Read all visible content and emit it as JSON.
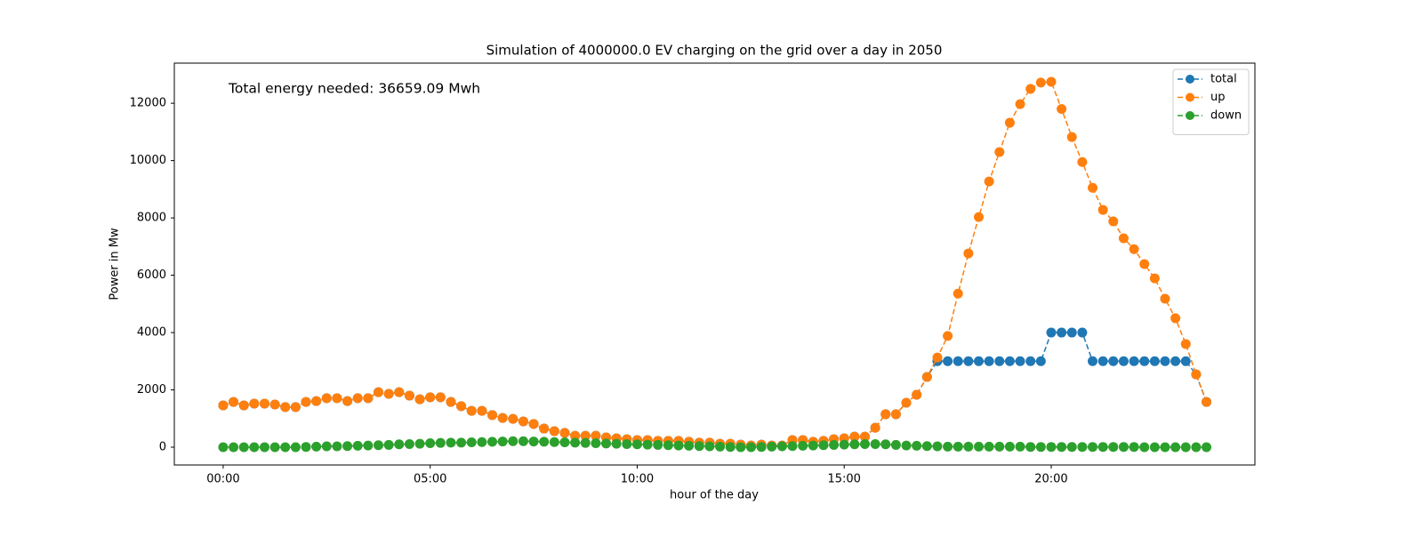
{
  "chart_data": {
    "type": "line",
    "title": "Simulation of 4000000.0 EV charging on the grid over a day in 2050",
    "x_label": "hour of the day",
    "y_label": "Power in Mw",
    "annotation": {
      "text": "Total energy needed: 36659.09 Mwh",
      "color": "#ff0000"
    },
    "x": [
      0,
      0.25,
      0.5,
      0.75,
      1,
      1.25,
      1.5,
      1.75,
      2,
      2.25,
      2.5,
      2.75,
      3,
      3.25,
      3.5,
      3.75,
      4,
      4.25,
      4.5,
      4.75,
      5,
      5.25,
      5.5,
      5.75,
      6,
      6.25,
      6.5,
      6.75,
      7,
      7.25,
      7.5,
      7.75,
      8,
      8.25,
      8.5,
      8.75,
      9,
      9.25,
      9.5,
      9.75,
      10,
      10.25,
      10.5,
      10.75,
      11,
      11.25,
      11.5,
      11.75,
      12,
      12.25,
      12.5,
      12.75,
      13,
      13.25,
      13.5,
      13.75,
      14,
      14.25,
      14.5,
      14.75,
      15,
      15.25,
      15.5,
      15.75,
      16,
      16.25,
      16.5,
      16.75,
      17,
      17.25,
      17.5,
      17.75,
      18,
      18.25,
      18.5,
      18.75,
      19,
      19.25,
      19.5,
      19.75,
      20,
      20.25,
      20.5,
      20.75,
      21,
      21.25,
      21.5,
      21.75,
      22,
      22.25,
      22.5,
      22.75,
      23,
      23.25,
      23.5,
      23.75
    ],
    "series": [
      {
        "name": "total",
        "color": "#1f77b4",
        "values": [
          1460,
          1580,
          1460,
          1520,
          1520,
          1490,
          1400,
          1400,
          1580,
          1610,
          1710,
          1710,
          1610,
          1710,
          1710,
          1920,
          1860,
          1920,
          1800,
          1670,
          1740,
          1740,
          1580,
          1430,
          1270,
          1270,
          1120,
          1020,
          990,
          900,
          810,
          650,
          560,
          500,
          400,
          400,
          400,
          340,
          310,
          280,
          250,
          250,
          220,
          220,
          220,
          190,
          160,
          160,
          120,
          120,
          90,
          60,
          90,
          60,
          60,
          250,
          250,
          190,
          220,
          280,
          310,
          370,
          370,
          680,
          1150,
          1150,
          1550,
          1830,
          2450,
          3000,
          3000,
          3000,
          3000,
          3000,
          3000,
          3000,
          3000,
          3000,
          3000,
          3000,
          4000,
          4000,
          4000,
          4000,
          3000,
          3000,
          3000,
          3000,
          3000,
          3000,
          3000,
          3000,
          3000,
          3000,
          2540,
          1580
        ]
      },
      {
        "name": "up",
        "color": "#ff7f0e",
        "values": [
          1460,
          1580,
          1460,
          1520,
          1520,
          1490,
          1400,
          1400,
          1580,
          1610,
          1710,
          1710,
          1610,
          1710,
          1710,
          1920,
          1860,
          1920,
          1800,
          1670,
          1740,
          1740,
          1580,
          1430,
          1270,
          1270,
          1120,
          1020,
          990,
          900,
          810,
          650,
          560,
          500,
          400,
          400,
          400,
          340,
          310,
          280,
          250,
          250,
          220,
          220,
          220,
          190,
          160,
          160,
          120,
          120,
          90,
          60,
          90,
          60,
          60,
          250,
          250,
          190,
          220,
          280,
          310,
          370,
          370,
          680,
          1150,
          1150,
          1550,
          1830,
          2450,
          3130,
          3880,
          5360,
          6760,
          8030,
          9270,
          10300,
          11320,
          11970,
          12500,
          12720,
          12750,
          11800,
          10820,
          9950,
          9050,
          8280,
          7880,
          7290,
          6910,
          6390,
          5890,
          5180,
          4500,
          3600,
          2540,
          1580
        ]
      },
      {
        "name": "down",
        "color": "#2ca02c",
        "values": [
          0,
          0,
          0,
          0,
          0,
          0,
          0,
          0,
          10,
          20,
          30,
          30,
          40,
          50,
          60,
          70,
          80,
          100,
          110,
          120,
          140,
          150,
          160,
          160,
          170,
          180,
          190,
          200,
          210,
          210,
          200,
          190,
          180,
          170,
          160,
          150,
          140,
          130,
          120,
          110,
          100,
          90,
          80,
          70,
          60,
          50,
          40,
          30,
          20,
          10,
          0,
          0,
          10,
          20,
          30,
          40,
          50,
          60,
          70,
          80,
          90,
          100,
          110,
          110,
          100,
          80,
          60,
          50,
          40,
          30,
          20,
          20,
          20,
          20,
          20,
          20,
          20,
          20,
          10,
          10,
          10,
          10,
          10,
          10,
          10,
          10,
          10,
          10,
          10,
          0,
          0,
          0,
          0,
          0,
          0,
          0
        ]
      }
    ],
    "xlim": [
      -1.18,
      24.92
    ],
    "xticks": [
      {
        "value": 0,
        "label": "00:00"
      },
      {
        "value": 5,
        "label": "05:00"
      },
      {
        "value": 10,
        "label": "10:00"
      },
      {
        "value": 15,
        "label": "15:00"
      },
      {
        "value": 20,
        "label": "20:00"
      }
    ],
    "ylim": [
      -620,
      13400
    ],
    "yticks": [
      0,
      2000,
      4000,
      6000,
      8000,
      10000,
      12000
    ],
    "line_style": "dashed",
    "marker": "circle",
    "legend": "upper right",
    "grid": false
  }
}
